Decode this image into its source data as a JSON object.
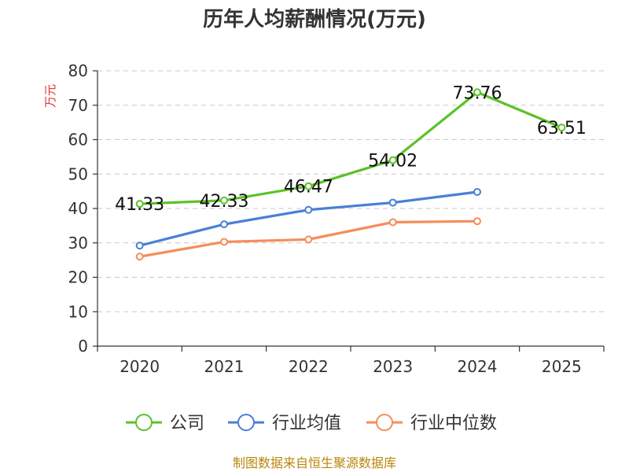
{
  "chart_data": {
    "type": "line",
    "title": "历年人均薪酬情况(万元)",
    "xlabel": "",
    "ylabel": "万元",
    "categories": [
      "2020",
      "2021",
      "2022",
      "2023",
      "2024",
      "2025"
    ],
    "ylim": [
      0,
      80
    ],
    "yticks": [
      0,
      10,
      20,
      30,
      40,
      50,
      60,
      70,
      80
    ],
    "grid": true,
    "legend_position": "bottom",
    "series": [
      {
        "name": "公司",
        "color": "#5cc12a",
        "show_labels": true,
        "values": [
          41.33,
          42.33,
          46.47,
          54.02,
          73.76,
          63.51
        ],
        "labels": [
          "41.33",
          "42.33",
          "46.47",
          "54.02",
          "73.76",
          "63.51"
        ]
      },
      {
        "name": "行业均值",
        "color": "#4a7fd6",
        "show_labels": false,
        "values": [
          29.2,
          35.4,
          39.6,
          41.7,
          44.8,
          null
        ]
      },
      {
        "name": "行业中位数",
        "color": "#f58d5a",
        "show_labels": false,
        "values": [
          26.0,
          30.3,
          31.0,
          36.0,
          36.3,
          null
        ]
      }
    ],
    "source": "制图数据来自恒生聚源数据库"
  }
}
